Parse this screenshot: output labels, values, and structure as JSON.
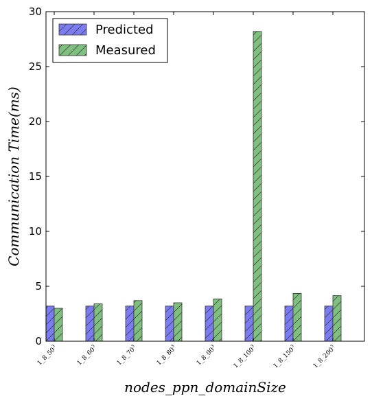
{
  "chart_data": {
    "type": "bar",
    "title": "",
    "xlabel": "nodes_ppn_domainSize",
    "ylabel": "Communication Time(ms)",
    "ylim": [
      0,
      30
    ],
    "yticks": [
      0,
      5,
      10,
      15,
      20,
      25,
      30
    ],
    "grid": false,
    "legend_position": "top-left",
    "categories": [
      {
        "base": "1_8_50",
        "exp": "3"
      },
      {
        "base": "1_8_60",
        "exp": "3"
      },
      {
        "base": "1_8_70",
        "exp": "3"
      },
      {
        "base": "1_8_80",
        "exp": "3"
      },
      {
        "base": "1_8_90",
        "exp": "3"
      },
      {
        "base": "1_8_100",
        "exp": "3"
      },
      {
        "base": "1_8_150",
        "exp": "3"
      },
      {
        "base": "1_8_200",
        "exp": "3"
      }
    ],
    "series": [
      {
        "name": "Predicted",
        "color": "#7b7bf2",
        "hatch": "/",
        "values": [
          3.2,
          3.2,
          3.2,
          3.2,
          3.2,
          3.2,
          3.2,
          3.2
        ]
      },
      {
        "name": "Measured",
        "color": "#7fbf7f",
        "hatch": "/",
        "values": [
          3.0,
          3.4,
          3.7,
          3.5,
          3.85,
          28.2,
          4.35,
          4.15
        ]
      }
    ]
  }
}
